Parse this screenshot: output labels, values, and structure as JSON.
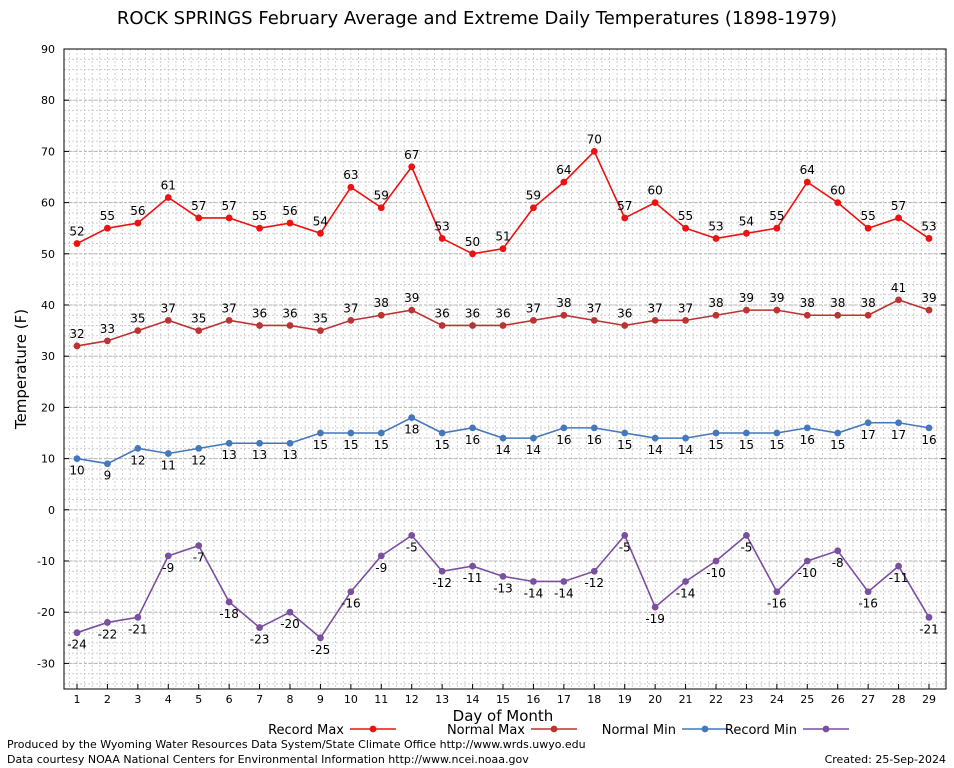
{
  "chart_data": {
    "type": "line",
    "title": "ROCK SPRINGS February Average and Extreme Daily Temperatures (1898-1979)",
    "xlabel": "Day of Month",
    "ylabel": "Temperature (F)",
    "ylim": [
      -35,
      90
    ],
    "yticks": [
      -30,
      -20,
      -10,
      0,
      10,
      20,
      30,
      40,
      50,
      60,
      70,
      80,
      90
    ],
    "grid": true,
    "legend_position": "bottom",
    "categories": [
      "1",
      "2",
      "3",
      "4",
      "5",
      "6",
      "7",
      "8",
      "9",
      "10",
      "11",
      "12",
      "13",
      "14",
      "15",
      "16",
      "17",
      "18",
      "19",
      "20",
      "21",
      "22",
      "23",
      "24",
      "25",
      "26",
      "27",
      "28",
      "29"
    ],
    "series": [
      {
        "name": "Record Max",
        "color": "#ee1111",
        "label_position": "above",
        "values": [
          52,
          55,
          56,
          61,
          57,
          57,
          55,
          56,
          54,
          63,
          59,
          67,
          53,
          50,
          51,
          59,
          64,
          70,
          57,
          60,
          55,
          53,
          54,
          55,
          64,
          60,
          55,
          57,
          53
        ]
      },
      {
        "name": "Normal Max",
        "color": "#bb3333",
        "label_position": "above",
        "values": [
          32,
          33,
          35,
          37,
          35,
          37,
          36,
          36,
          35,
          37,
          38,
          39,
          36,
          36,
          36,
          37,
          38,
          37,
          36,
          37,
          37,
          38,
          39,
          39,
          38,
          38,
          38,
          41,
          39
        ]
      },
      {
        "name": "Normal Min",
        "color": "#4477bb",
        "label_position": "below",
        "values": [
          10,
          9,
          12,
          11,
          12,
          13,
          13,
          13,
          15,
          15,
          15,
          18,
          15,
          16,
          14,
          14,
          16,
          16,
          15,
          14,
          14,
          15,
          15,
          15,
          16,
          15,
          17,
          17,
          16
        ]
      },
      {
        "name": "Record Min",
        "color": "#7a4fa0",
        "label_position": "below",
        "values": [
          -24,
          -22,
          -21,
          -9,
          -7,
          -18,
          -23,
          -20,
          -25,
          -16,
          -9,
          -5,
          -12,
          -11,
          -13,
          -14,
          -14,
          -12,
          -5,
          -19,
          -14,
          -10,
          -5,
          -16,
          -10,
          -8,
          -16,
          -11,
          -21
        ]
      }
    ]
  },
  "footer": {
    "produced": "Produced by the Wyoming Water Resources Data System/State Climate Office http://www.wrds.uwyo.edu",
    "courtesy": "Data courtesy NOAA National Centers for Environmental Information http://www.ncei.noaa.gov",
    "created": "Created: 25-Sep-2024"
  }
}
